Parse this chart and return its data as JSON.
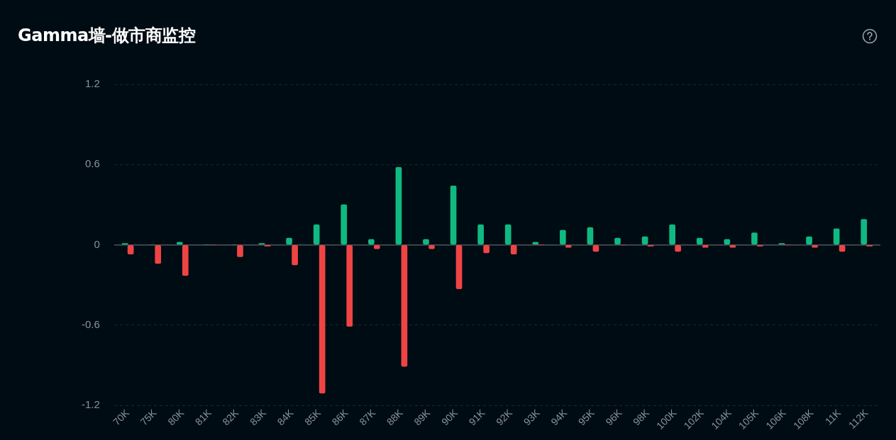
{
  "chart_data": {
    "type": "bar",
    "title": "Gamma墙-做市商监控",
    "categories": [
      "70K",
      "75K",
      "80K",
      "81K",
      "82K",
      "83K",
      "84K",
      "85K",
      "86K",
      "87K",
      "88K",
      "89K",
      "90K",
      "91K",
      "92K",
      "93K",
      "94K",
      "95K",
      "96K",
      "98K",
      "100K",
      "102K",
      "104K",
      "105K",
      "106K",
      "108K",
      "11K",
      "112K"
    ],
    "series": [
      {
        "color": "#10b981",
        "values": [
          0.01,
          0,
          0.02,
          0,
          0,
          0.01,
          0.05,
          0.15,
          0.3,
          0.04,
          0.58,
          0.04,
          0.44,
          0.15,
          0.15,
          0.02,
          0.11,
          0.13,
          0.05,
          0.06,
          0.15,
          0.05,
          0.04,
          0.09,
          0.01,
          0.06,
          0.12,
          0.19
        ]
      },
      {
        "color": "#ef4444",
        "values": [
          -0.07,
          -0.14,
          -0.23,
          0,
          -0.09,
          -0.01,
          -0.15,
          -1.11,
          -0.61,
          -0.03,
          -0.91,
          -0.03,
          -0.33,
          -0.06,
          -0.07,
          0,
          -0.02,
          -0.05,
          0,
          -0.01,
          -0.05,
          -0.02,
          -0.02,
          -0.01,
          0,
          -0.02,
          -0.05,
          -0.01
        ]
      }
    ],
    "ylim": [
      -1.2,
      1.2
    ],
    "yticks": [
      -1.2,
      -0.6,
      0,
      0.6,
      1.2
    ],
    "grid": "y",
    "legend": false
  }
}
